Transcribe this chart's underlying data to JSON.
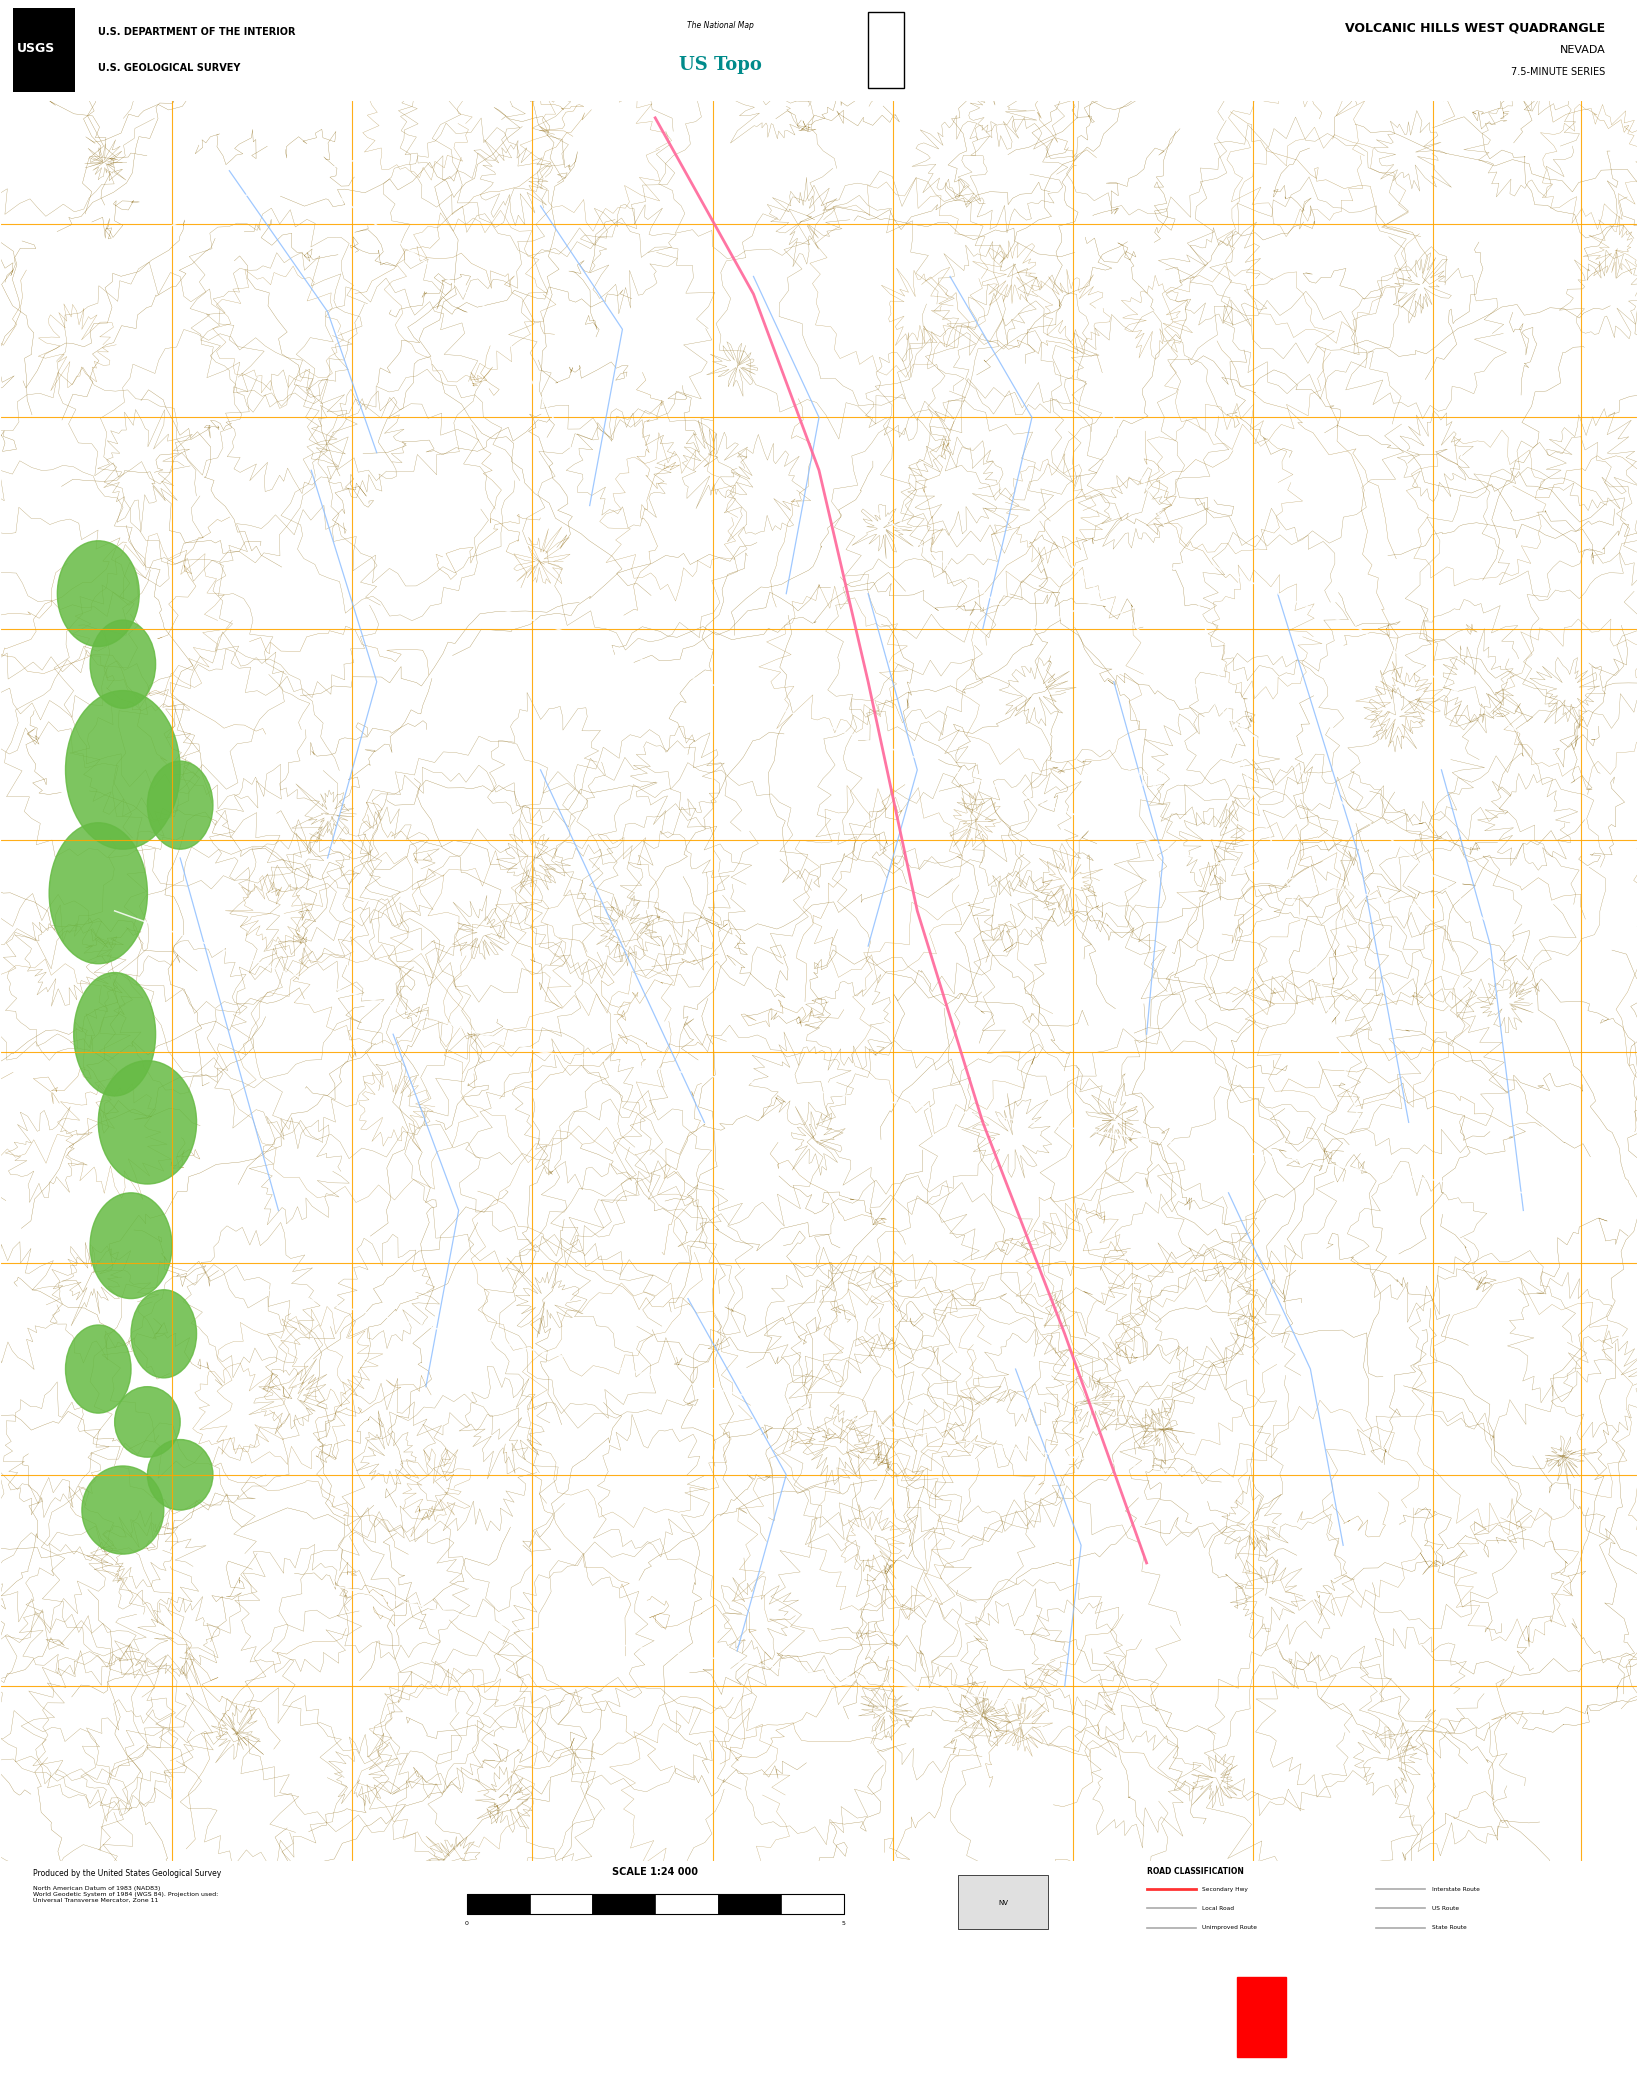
{
  "title": "VOLCANIC HILLS WEST QUADRANGLE",
  "subtitle1": "NEVADA",
  "subtitle2": "7.5-MINUTE SERIES",
  "agency1": "U.S. DEPARTMENT OF THE INTERIOR",
  "agency2": "U.S. GEOLOGICAL SURVEY",
  "scale_text": "SCALE 1:24 000",
  "map_bg_color": "#1a0d00",
  "header_bg": "#ffffff",
  "footer_bg": "#ffffff",
  "bottom_black_bar": "#000000",
  "fig_width": 16.38,
  "fig_height": 20.88,
  "topo_line_color": "#8B6914",
  "topo_line_color2": "#A07820",
  "grid_color_orange": "#FFA500",
  "road_color_white": "#FFFFFF",
  "road_color_pink": "#FF6699",
  "vegetation_color": "#66BB44",
  "water_color": "#88BBFF",
  "red_square_color": "#FF0000"
}
